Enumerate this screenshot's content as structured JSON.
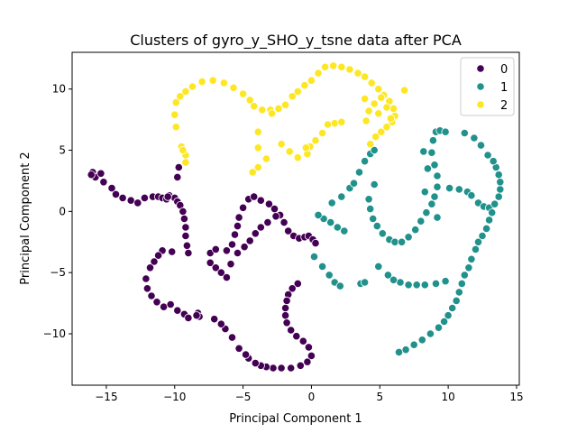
{
  "chart_data": {
    "type": "scatter",
    "title": "Clusters of gyro_y_SHO_y_tsne data after PCA",
    "xlabel": "Principal Component 1",
    "ylabel": "Principal Component 2",
    "xlim": [
      -17.5,
      15.2
    ],
    "ylim": [
      -14.2,
      13.0
    ],
    "xticks": [
      -15,
      -10,
      -5,
      0,
      5,
      10,
      15
    ],
    "yticks": [
      -10,
      -5,
      0,
      5,
      10
    ],
    "grid": false,
    "legend_position": "top-right",
    "series": [
      {
        "name": "0",
        "color": "#440154",
        "points": [
          [
            -16,
            3.2
          ],
          [
            -15.8,
            2.8
          ],
          [
            -15.4,
            3.1
          ],
          [
            -15.2,
            2.4
          ],
          [
            -14.6,
            1.9
          ],
          [
            -14.3,
            1.4
          ],
          [
            -13.8,
            1.1
          ],
          [
            -13.2,
            0.9
          ],
          [
            -12.7,
            0.7
          ],
          [
            -12.2,
            1.1
          ],
          [
            -11.6,
            1.2
          ],
          [
            -11.2,
            1.2
          ],
          [
            -10.9,
            1.1
          ],
          [
            -10.6,
            1.0
          ],
          [
            -10.4,
            1.3
          ],
          [
            -10.0,
            1.1
          ],
          [
            -9.8,
            0.8
          ],
          [
            -9.6,
            0.5
          ],
          [
            -9.4,
            0.0
          ],
          [
            -9.3,
            -0.6
          ],
          [
            -9.2,
            -1.3
          ],
          [
            -9.2,
            -2.0
          ],
          [
            -9.1,
            -2.8
          ],
          [
            -9.0,
            -3.4
          ],
          [
            -10.2,
            -3.3
          ],
          [
            -10.9,
            -3.2
          ],
          [
            -11.2,
            -3.6
          ],
          [
            -11.5,
            -4.1
          ],
          [
            -11.8,
            -4.6
          ],
          [
            -12.1,
            -5.5
          ],
          [
            -12.0,
            -6.3
          ],
          [
            -11.7,
            -6.9
          ],
          [
            -11.3,
            -7.4
          ],
          [
            -10.8,
            -7.8
          ],
          [
            -10.3,
            -7.6
          ],
          [
            -9.8,
            -8.1
          ],
          [
            -9.3,
            -8.4
          ],
          [
            -9.0,
            -8.7
          ],
          [
            -8.3,
            -8.3
          ],
          [
            -7.4,
            -3.4
          ],
          [
            -7.0,
            -3.1
          ],
          [
            -6.2,
            -3.2
          ],
          [
            -5.8,
            -2.7
          ],
          [
            -5.6,
            -1.9
          ],
          [
            -5.4,
            -1.2
          ],
          [
            -5.3,
            -0.5
          ],
          [
            -5.0,
            0.3
          ],
          [
            -4.6,
            1.0
          ],
          [
            -4.2,
            1.2
          ],
          [
            -3.7,
            0.9
          ],
          [
            -3.1,
            0.6
          ],
          [
            -2.7,
            0.2
          ],
          [
            -2.3,
            -0.3
          ],
          [
            -2.0,
            -0.9
          ],
          [
            -1.7,
            -1.6
          ],
          [
            -1.3,
            -2.0
          ],
          [
            -0.9,
            -2.2
          ],
          [
            -0.5,
            -2.1
          ],
          [
            -0.2,
            -2.0
          ],
          [
            0.1,
            -2.3
          ],
          [
            0.3,
            -2.6
          ],
          [
            -1.0,
            -5.9
          ],
          [
            -1.4,
            -6.3
          ],
          [
            -1.7,
            -6.8
          ],
          [
            -1.8,
            -7.3
          ],
          [
            -1.9,
            -7.9
          ],
          [
            -1.9,
            -8.5
          ],
          [
            -1.8,
            -9.1
          ],
          [
            -1.5,
            -9.7
          ],
          [
            -1.1,
            -10.2
          ],
          [
            -0.6,
            -10.6
          ],
          [
            -0.2,
            -11.1
          ],
          [
            0.0,
            -11.8
          ],
          [
            -0.3,
            -12.3
          ],
          [
            -0.8,
            -12.6
          ],
          [
            -1.5,
            -12.8
          ],
          [
            -2.2,
            -12.8
          ],
          [
            -2.8,
            -12.8
          ],
          [
            -3.3,
            -12.7
          ],
          [
            -3.7,
            -12.6
          ],
          [
            -4.1,
            -12.4
          ],
          [
            -4.6,
            -12.0
          ],
          [
            -4.8,
            -11.7
          ],
          [
            -5.3,
            -11.2
          ],
          [
            -5.8,
            -10.3
          ],
          [
            -6.3,
            -9.6
          ],
          [
            -6.6,
            -9.2
          ],
          [
            -7.1,
            -8.8
          ],
          [
            -8.2,
            -8.6
          ],
          [
            -8.4,
            -8.5
          ],
          [
            -7.4,
            -4.2
          ],
          [
            -7.0,
            -4.6
          ],
          [
            -6.6,
            -5.0
          ],
          [
            -6.2,
            -5.4
          ],
          [
            -5.9,
            -4.3
          ],
          [
            -5.4,
            -3.4
          ],
          [
            -4.9,
            -2.9
          ],
          [
            -4.5,
            -2.4
          ],
          [
            -4.1,
            -1.8
          ],
          [
            -3.7,
            -1.3
          ],
          [
            -3.2,
            -0.9
          ],
          [
            -2.6,
            -0.4
          ],
          [
            -9.8,
            2.8
          ],
          [
            -9.7,
            3.6
          ],
          [
            -16.1,
            3.0
          ],
          [
            -10.5,
            1.2
          ]
        ]
      },
      {
        "name": "1",
        "color": "#21918c",
        "points": [
          [
            0.2,
            -3.7
          ],
          [
            0.8,
            -4.5
          ],
          [
            1.3,
            -5.2
          ],
          [
            1.7,
            -5.8
          ],
          [
            2.1,
            -6.1
          ],
          [
            2.4,
            -1.6
          ],
          [
            1.9,
            -1.3
          ],
          [
            1.4,
            -0.9
          ],
          [
            0.9,
            -0.6
          ],
          [
            0.5,
            -0.3
          ],
          [
            1.5,
            0.7
          ],
          [
            2.2,
            1.2
          ],
          [
            2.8,
            1.9
          ],
          [
            3.1,
            2.3
          ],
          [
            3.5,
            3.2
          ],
          [
            3.9,
            4.1
          ],
          [
            4.3,
            4.7
          ],
          [
            4.6,
            5.0
          ],
          [
            4.6,
            2.2
          ],
          [
            4.2,
            1.0
          ],
          [
            4.3,
            0.2
          ],
          [
            4.5,
            -0.6
          ],
          [
            4.8,
            -1.2
          ],
          [
            5.2,
            -1.8
          ],
          [
            5.7,
            -2.3
          ],
          [
            6.1,
            -2.5
          ],
          [
            6.6,
            -2.5
          ],
          [
            7.1,
            -2.1
          ],
          [
            7.6,
            -1.5
          ],
          [
            8.0,
            -0.8
          ],
          [
            8.4,
            -0.1
          ],
          [
            8.8,
            0.6
          ],
          [
            9.0,
            1.2
          ],
          [
            9.2,
            2.0
          ],
          [
            9.2,
            2.9
          ],
          [
            9.0,
            3.8
          ],
          [
            8.8,
            4.8
          ],
          [
            8.9,
            5.8
          ],
          [
            9.1,
            6.5
          ],
          [
            9.4,
            6.6
          ],
          [
            9.8,
            6.5
          ],
          [
            10.1,
            1.9
          ],
          [
            10.8,
            1.8
          ],
          [
            11.4,
            1.6
          ],
          [
            11.7,
            1.3
          ],
          [
            12.2,
            0.7
          ],
          [
            12.6,
            0.4
          ],
          [
            13.0,
            0.3
          ],
          [
            13.4,
            0.6
          ],
          [
            13.7,
            1.2
          ],
          [
            13.8,
            1.8
          ],
          [
            13.8,
            2.4
          ],
          [
            13.7,
            3.0
          ],
          [
            13.5,
            3.6
          ],
          [
            13.3,
            4.1
          ],
          [
            12.9,
            4.6
          ],
          [
            12.4,
            5.4
          ],
          [
            11.9,
            6.0
          ],
          [
            11.2,
            6.4
          ],
          [
            13.2,
            -0.1
          ],
          [
            13.0,
            -0.7
          ],
          [
            12.8,
            -1.4
          ],
          [
            12.5,
            -2.0
          ],
          [
            12.2,
            -2.5
          ],
          [
            12.0,
            -3.1
          ],
          [
            11.7,
            -3.9
          ],
          [
            11.5,
            -4.6
          ],
          [
            11.2,
            -5.2
          ],
          [
            11.0,
            -5.9
          ],
          [
            10.8,
            -6.6
          ],
          [
            10.6,
            -7.3
          ],
          [
            10.3,
            -7.9
          ],
          [
            10.0,
            -8.5
          ],
          [
            9.7,
            -9.0
          ],
          [
            9.3,
            -9.5
          ],
          [
            8.7,
            -10.0
          ],
          [
            8.1,
            -10.5
          ],
          [
            7.5,
            -10.9
          ],
          [
            6.9,
            -11.3
          ],
          [
            6.4,
            -11.5
          ],
          [
            9.8,
            -5.7
          ],
          [
            9.1,
            -5.9
          ],
          [
            8.3,
            -6.0
          ],
          [
            7.7,
            -6.0
          ],
          [
            7.1,
            -6.0
          ],
          [
            6.5,
            -5.8
          ],
          [
            6.0,
            -5.6
          ],
          [
            5.6,
            -5.2
          ],
          [
            4.9,
            -4.5
          ],
          [
            3.6,
            -5.9
          ],
          [
            3.9,
            -5.8
          ],
          [
            8.2,
            4.9
          ],
          [
            8.5,
            3.5
          ],
          [
            8.3,
            1.6
          ],
          [
            9.2,
            -0.5
          ]
        ]
      },
      {
        "name": "2",
        "color": "#fde725",
        "points": [
          [
            -9.9,
            6.9
          ],
          [
            -10.0,
            7.9
          ],
          [
            -9.9,
            8.9
          ],
          [
            -9.6,
            9.4
          ],
          [
            -9.2,
            9.8
          ],
          [
            -8.7,
            10.2
          ],
          [
            -8.0,
            10.6
          ],
          [
            -7.2,
            10.7
          ],
          [
            -6.4,
            10.5
          ],
          [
            -5.7,
            10.1
          ],
          [
            -5.0,
            9.6
          ],
          [
            -4.5,
            9.1
          ],
          [
            -4.2,
            8.6
          ],
          [
            -3.6,
            8.3
          ],
          [
            -3.0,
            8.3
          ],
          [
            -2.4,
            8.4
          ],
          [
            -1.9,
            8.7
          ],
          [
            -1.4,
            9.4
          ],
          [
            -1.0,
            9.8
          ],
          [
            -0.5,
            10.3
          ],
          [
            0.0,
            10.7
          ],
          [
            0.5,
            11.3
          ],
          [
            1.0,
            11.8
          ],
          [
            1.6,
            11.9
          ],
          [
            2.2,
            11.8
          ],
          [
            2.8,
            11.6
          ],
          [
            3.4,
            11.3
          ],
          [
            3.9,
            11.0
          ],
          [
            4.4,
            10.5
          ],
          [
            4.9,
            10.0
          ],
          [
            5.3,
            9.5
          ],
          [
            5.7,
            9.0
          ],
          [
            6.0,
            8.4
          ],
          [
            6.1,
            7.8
          ],
          [
            5.9,
            7.3
          ],
          [
            5.5,
            6.9
          ],
          [
            5.1,
            6.5
          ],
          [
            4.7,
            6.1
          ],
          [
            4.3,
            5.5
          ],
          [
            4.0,
            7.4
          ],
          [
            4.2,
            8.2
          ],
          [
            4.6,
            8.8
          ],
          [
            5.1,
            9.3
          ],
          [
            5.5,
            8.5
          ],
          [
            5.8,
            7.6
          ],
          [
            3.9,
            9.2
          ],
          [
            1.7,
            7.2
          ],
          [
            1.2,
            7.1
          ],
          [
            0.8,
            6.4
          ],
          [
            0.3,
            5.8
          ],
          [
            -0.1,
            5.3
          ],
          [
            -0.3,
            4.7
          ],
          [
            -1.0,
            4.4
          ],
          [
            -1.6,
            4.9
          ],
          [
            -2.2,
            5.5
          ],
          [
            -3.3,
            4.3
          ],
          [
            -3.9,
            3.6
          ],
          [
            -4.3,
            3.2
          ],
          [
            -3.9,
            5.2
          ],
          [
            -3.9,
            6.5
          ],
          [
            -2.9,
            8.0
          ],
          [
            -9.5,
            5.3
          ],
          [
            -9.2,
            4.6
          ],
          [
            -9.2,
            4.0
          ],
          [
            -9.4,
            5.0
          ],
          [
            6.8,
            9.9
          ],
          [
            4.9,
            8.0
          ],
          [
            2.2,
            7.3
          ],
          [
            -0.4,
            5.2
          ]
        ]
      }
    ]
  }
}
